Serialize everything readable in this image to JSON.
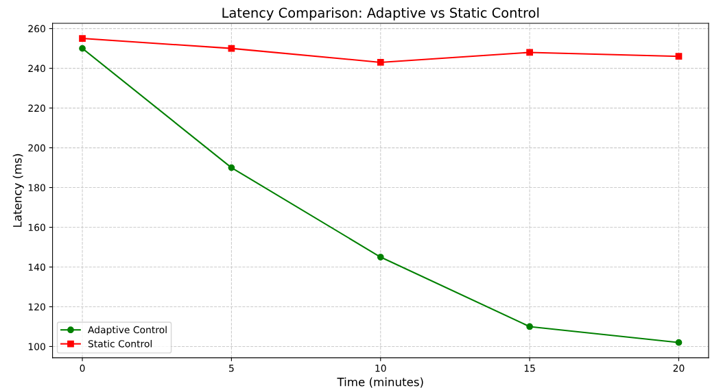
{
  "chart_data": {
    "type": "line",
    "title": "Latency Comparison: Adaptive vs Static Control",
    "xlabel": "Time (minutes)",
    "ylabel": "Latency (ms)",
    "x": [
      0,
      5,
      10,
      15,
      20
    ],
    "series": [
      {
        "name": "Adaptive Control",
        "color": "#008000",
        "marker": "circle",
        "values": [
          250,
          190,
          145,
          110,
          102
        ]
      },
      {
        "name": "Static Control",
        "color": "#ff0000",
        "marker": "square",
        "values": [
          255,
          250,
          243,
          248,
          246
        ]
      }
    ],
    "xlim": [
      -1,
      21
    ],
    "xticks": [
      0,
      5,
      10,
      15,
      20
    ],
    "ylim": [
      94.35,
      262.65
    ],
    "yticks": [
      100,
      120,
      140,
      160,
      180,
      200,
      220,
      240,
      260
    ],
    "grid": true,
    "legend": "bottom left",
    "line_style": "solid"
  }
}
